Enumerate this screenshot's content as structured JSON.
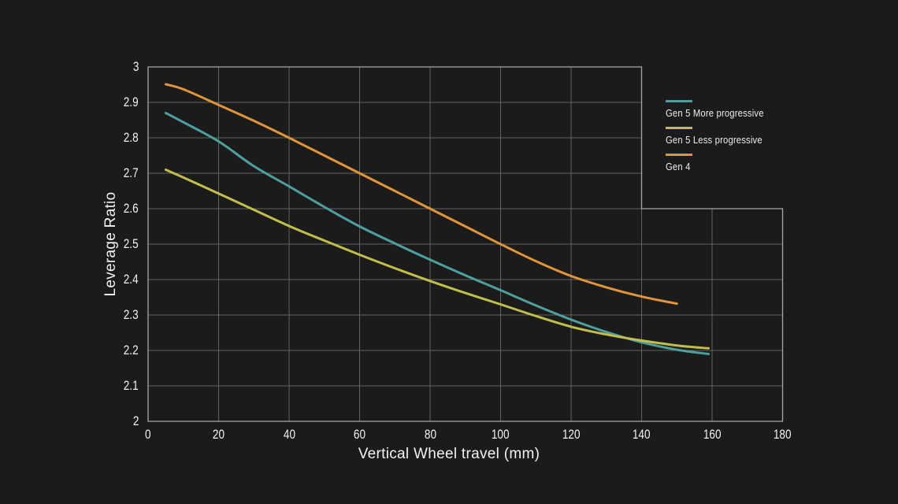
{
  "colors": {
    "background": "#1b1b1b",
    "grid": "#616161",
    "border": "#a8a8a8",
    "text": "#f2f2f2",
    "legend_text": "#ededed"
  },
  "chart_data": {
    "type": "line",
    "title": "",
    "xlabel": "Vertical Wheel travel (mm)",
    "ylabel": "Leverage Ratio",
    "xlim": [
      0,
      180
    ],
    "ylim": [
      2,
      3
    ],
    "x_tick_values": [
      0,
      20,
      40,
      60,
      80,
      100,
      120,
      140,
      160,
      180
    ],
    "x_tick_labels": [
      "0",
      "20",
      "40",
      "60",
      "80",
      "100",
      "120",
      "140",
      "160",
      "180"
    ],
    "y_tick_values": [
      2,
      2.1,
      2.2,
      2.3,
      2.4,
      2.5,
      2.6,
      2.7,
      2.8,
      2.9,
      3
    ],
    "y_tick_labels": [
      "2",
      "2.1",
      "2.2",
      "2.3",
      "2.4",
      "2.5",
      "2.6",
      "2.7",
      "2.8",
      "2.9",
      "3"
    ],
    "grid": "on",
    "legend_position": "right-outside",
    "grid_regions": [
      {
        "x": [
          0,
          140
        ],
        "y": [
          2.6,
          3.0
        ]
      },
      {
        "x": [
          0,
          180
        ],
        "y": [
          2.0,
          2.6
        ]
      }
    ],
    "series": [
      {
        "name": "Gen 5 More progressive",
        "color": "#4E9F9E",
        "points": [
          [
            5,
            2.87
          ],
          [
            10,
            2.844
          ],
          [
            20,
            2.79
          ],
          [
            30,
            2.72
          ],
          [
            40,
            2.663
          ],
          [
            50,
            2.605
          ],
          [
            60,
            2.55
          ],
          [
            70,
            2.502
          ],
          [
            80,
            2.456
          ],
          [
            90,
            2.412
          ],
          [
            100,
            2.37
          ],
          [
            110,
            2.327
          ],
          [
            120,
            2.287
          ],
          [
            130,
            2.252
          ],
          [
            140,
            2.223
          ],
          [
            150,
            2.202
          ],
          [
            159,
            2.19
          ]
        ]
      },
      {
        "name": "Gen 5 Less progressive",
        "color": "#C1BE4B",
        "points": [
          [
            5,
            2.71
          ],
          [
            10,
            2.688
          ],
          [
            20,
            2.643
          ],
          [
            30,
            2.597
          ],
          [
            40,
            2.551
          ],
          [
            50,
            2.51
          ],
          [
            60,
            2.47
          ],
          [
            70,
            2.432
          ],
          [
            80,
            2.396
          ],
          [
            90,
            2.362
          ],
          [
            100,
            2.33
          ],
          [
            110,
            2.297
          ],
          [
            120,
            2.267
          ],
          [
            130,
            2.245
          ],
          [
            140,
            2.228
          ],
          [
            150,
            2.214
          ],
          [
            159,
            2.206
          ]
        ]
      },
      {
        "name": "Gen 4",
        "color": "#E0953A",
        "points": [
          [
            5,
            2.951
          ],
          [
            10,
            2.937
          ],
          [
            20,
            2.893
          ],
          [
            30,
            2.848
          ],
          [
            40,
            2.8
          ],
          [
            50,
            2.75
          ],
          [
            60,
            2.7
          ],
          [
            70,
            2.65
          ],
          [
            80,
            2.6
          ],
          [
            90,
            2.55
          ],
          [
            100,
            2.5
          ],
          [
            110,
            2.452
          ],
          [
            120,
            2.41
          ],
          [
            130,
            2.378
          ],
          [
            140,
            2.352
          ],
          [
            150,
            2.332
          ]
        ]
      }
    ]
  }
}
